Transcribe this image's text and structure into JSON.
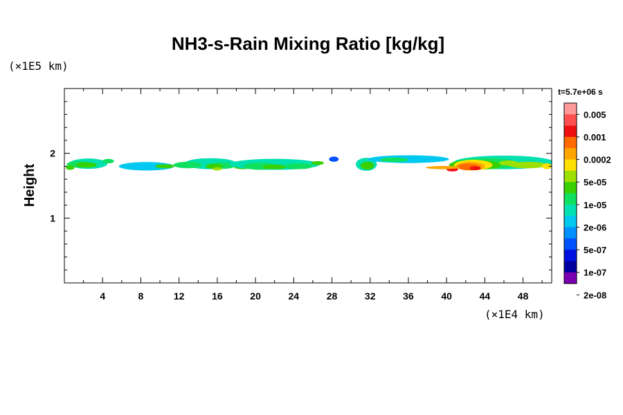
{
  "chart_data": {
    "type": "heatmap",
    "title": "NH3-s-Rain Mixing Ratio [kg/kg]",
    "xlabel": "",
    "ylabel": "Height",
    "x_unit": "(×1E4 km)",
    "y_unit": "(×1E5 km)",
    "time_label": "t=5.7e+06 s",
    "xlim": [
      0,
      51
    ],
    "ylim": [
      0,
      3
    ],
    "x_ticks": [
      4,
      8,
      12,
      16,
      20,
      24,
      28,
      32,
      36,
      40,
      44,
      48
    ],
    "y_ticks": [
      1,
      2
    ],
    "colorbar": {
      "labels": [
        "0.005",
        "0.001",
        "0.0002",
        "5e-05",
        "1e-05",
        "2e-06",
        "5e-07",
        "1e-07",
        "2e-08"
      ],
      "colors": [
        "#ff9a9a",
        "#ff5050",
        "#ee1010",
        "#ff6a00",
        "#ffa500",
        "#ffe000",
        "#9be000",
        "#38d000",
        "#10e060",
        "#00e0b0",
        "#00c8f0",
        "#0090ff",
        "#0050ff",
        "#0010e0",
        "#0000a0",
        "#7a00b0"
      ]
    },
    "cloud_cells": [
      {
        "x": 2.5,
        "y": 1.84,
        "w": 4.0,
        "h": 0.16,
        "level": 9
      },
      {
        "x": 1.5,
        "y": 1.83,
        "w": 2.5,
        "h": 0.1,
        "level": 8
      },
      {
        "x": 2.3,
        "y": 1.82,
        "w": 2.2,
        "h": 0.08,
        "level": 7
      },
      {
        "x": 0.6,
        "y": 1.78,
        "w": 0.9,
        "h": 0.07,
        "level": 7
      },
      {
        "x": 4.6,
        "y": 1.88,
        "w": 1.2,
        "h": 0.07,
        "level": 8
      },
      {
        "x": 8.6,
        "y": 1.8,
        "w": 5.8,
        "h": 0.13,
        "level": 10
      },
      {
        "x": 10.5,
        "y": 1.8,
        "w": 2.0,
        "h": 0.06,
        "level": 7
      },
      {
        "x": 15.3,
        "y": 1.84,
        "w": 5.5,
        "h": 0.17,
        "level": 9
      },
      {
        "x": 12.9,
        "y": 1.82,
        "w": 3.0,
        "h": 0.1,
        "level": 8
      },
      {
        "x": 16.6,
        "y": 1.81,
        "w": 2.6,
        "h": 0.1,
        "level": 8
      },
      {
        "x": 15.7,
        "y": 1.8,
        "w": 1.8,
        "h": 0.08,
        "level": 7
      },
      {
        "x": 16.0,
        "y": 1.76,
        "w": 1.0,
        "h": 0.05,
        "level": 6
      },
      {
        "x": 18.7,
        "y": 1.79,
        "w": 1.9,
        "h": 0.07,
        "level": 7
      },
      {
        "x": 22.0,
        "y": 1.83,
        "w": 9.5,
        "h": 0.17,
        "level": 9
      },
      {
        "x": 20.5,
        "y": 1.8,
        "w": 3.5,
        "h": 0.11,
        "level": 8
      },
      {
        "x": 22.0,
        "y": 1.79,
        "w": 2.5,
        "h": 0.07,
        "level": 7
      },
      {
        "x": 24.5,
        "y": 1.8,
        "w": 3.0,
        "h": 0.09,
        "level": 8
      },
      {
        "x": 26.5,
        "y": 1.85,
        "w": 1.3,
        "h": 0.06,
        "level": 7
      },
      {
        "x": 28.2,
        "y": 1.91,
        "w": 1.0,
        "h": 0.08,
        "level": 12
      },
      {
        "x": 31.6,
        "y": 1.83,
        "w": 2.2,
        "h": 0.2,
        "level": 9
      },
      {
        "x": 31.7,
        "y": 1.81,
        "w": 1.4,
        "h": 0.12,
        "level": 7
      },
      {
        "x": 36.0,
        "y": 1.91,
        "w": 8.5,
        "h": 0.12,
        "level": 10
      },
      {
        "x": 34.5,
        "y": 1.9,
        "w": 3.0,
        "h": 0.07,
        "level": 8
      },
      {
        "x": 46.0,
        "y": 1.86,
        "w": 10.5,
        "h": 0.21,
        "level": 9
      },
      {
        "x": 44.0,
        "y": 1.84,
        "w": 7.0,
        "h": 0.17,
        "level": 8
      },
      {
        "x": 43.0,
        "y": 1.82,
        "w": 5.5,
        "h": 0.15,
        "level": 7
      },
      {
        "x": 48.5,
        "y": 1.82,
        "w": 4.0,
        "h": 0.1,
        "level": 6
      },
      {
        "x": 42.8,
        "y": 1.82,
        "w": 4.0,
        "h": 0.16,
        "level": 5
      },
      {
        "x": 42.5,
        "y": 1.8,
        "w": 3.0,
        "h": 0.13,
        "level": 4
      },
      {
        "x": 42.3,
        "y": 1.79,
        "w": 2.4,
        "h": 0.1,
        "level": 3
      },
      {
        "x": 40.6,
        "y": 1.75,
        "w": 1.2,
        "h": 0.06,
        "level": 2
      },
      {
        "x": 43.0,
        "y": 1.77,
        "w": 1.2,
        "h": 0.06,
        "level": 2
      },
      {
        "x": 39.6,
        "y": 1.78,
        "w": 3.6,
        "h": 0.05,
        "level": 4
      },
      {
        "x": 46.5,
        "y": 1.85,
        "w": 2.0,
        "h": 0.08,
        "level": 6
      },
      {
        "x": 50.5,
        "y": 1.8,
        "w": 1.0,
        "h": 0.09,
        "level": 5
      }
    ]
  }
}
